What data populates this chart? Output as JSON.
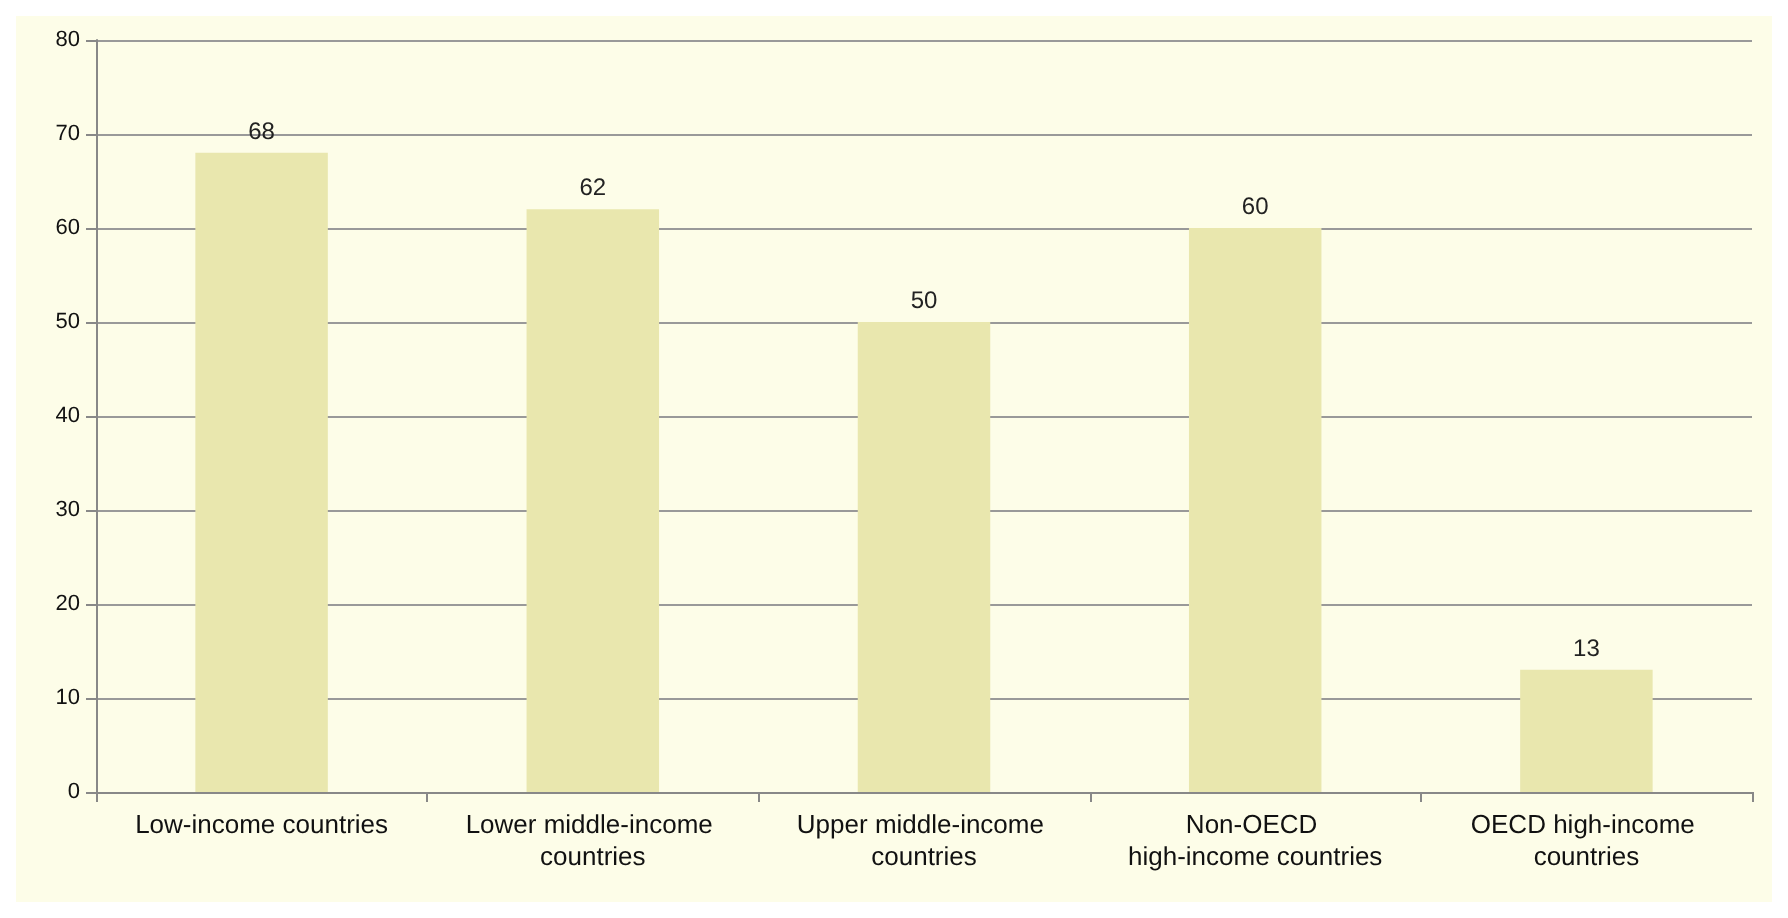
{
  "chart_data": {
    "type": "bar",
    "categories": [
      "Low-income countries",
      "Lower middle-income countries",
      "Upper middle-income countries",
      "Non-OECD high-income countries",
      "OECD high-income countries"
    ],
    "values": [
      68,
      62,
      50,
      60,
      13
    ],
    "color": "#e9e7ae",
    "ylim": [
      0,
      80
    ],
    "yticks": [
      0,
      10,
      20,
      30,
      40,
      50,
      60,
      70,
      80
    ],
    "grid": "y",
    "data_labels": true
  }
}
